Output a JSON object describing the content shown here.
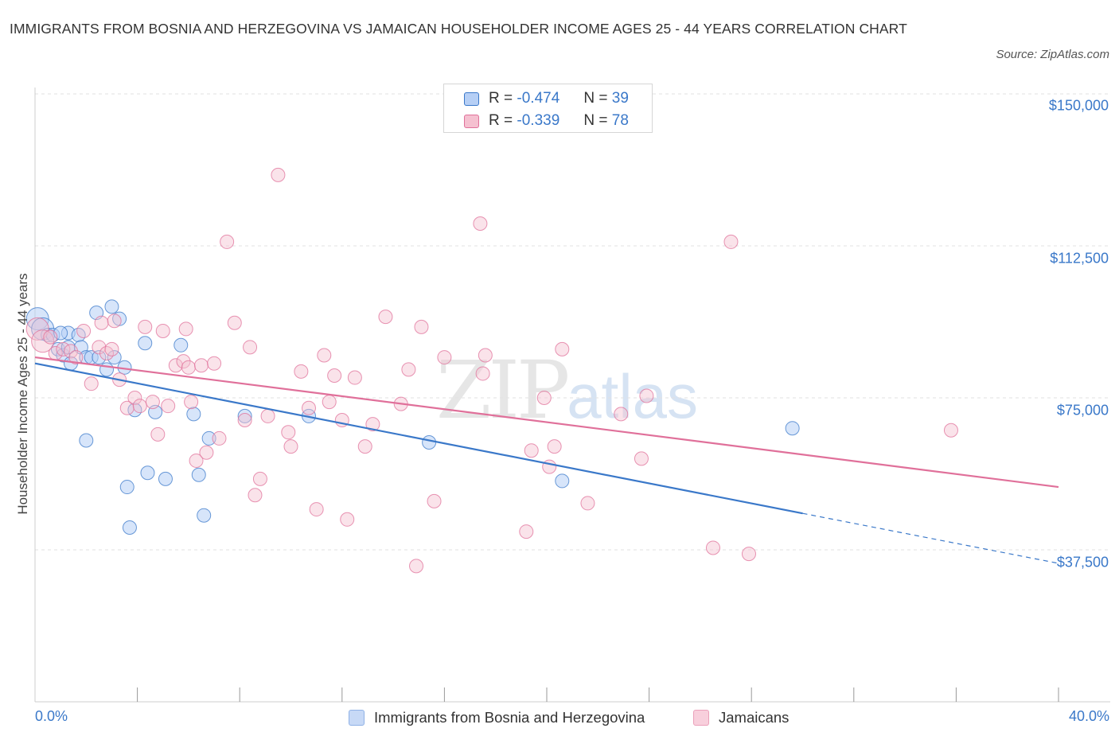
{
  "title": "IMMIGRANTS FROM BOSNIA AND HERZEGOVINA VS JAMAICAN HOUSEHOLDER INCOME AGES 25 - 44 YEARS CORRELATION CHART",
  "source": "Source: ZipAtlas.com",
  "watermark": {
    "zip": "ZIP",
    "atlas": "atlas"
  },
  "colors": {
    "blue": "#3a78c9",
    "blue_fill": "#b6cff5",
    "pink": "#e0709a",
    "pink_fill": "#f5c0d0"
  },
  "legend": {
    "r_label": "R =",
    "n_label": "N =",
    "series": [
      {
        "r": "-0.474",
        "n": "39"
      },
      {
        "r": "-0.339",
        "n": "78"
      }
    ]
  },
  "chart_data": {
    "type": "scatter",
    "title": "IMMIGRANTS FROM BOSNIA AND HERZEGOVINA VS JAMAICAN HOUSEHOLDER INCOME AGES 25 - 44 YEARS CORRELATION CHART",
    "xlabel": "",
    "ylabel": "Householder Income Ages 25 - 44 years",
    "xlim": [
      0,
      40
    ],
    "ylim": [
      0,
      155000
    ],
    "x_tick_labels": [
      "0.0%",
      "40.0%"
    ],
    "y_ticks": [
      37500,
      75000,
      112500,
      150000
    ],
    "y_tick_labels": [
      "$37,500",
      "$75,000",
      "$112,500",
      "$150,000"
    ],
    "grid": true,
    "series": [
      {
        "name": "Immigrants from Bosnia and Herzegovina",
        "color": "#3a78c9",
        "trend": {
          "x0": 0,
          "y0": 83500,
          "x1": 30,
          "y1": 46500,
          "dash_to_x": 40
        },
        "points": [
          [
            0.1,
            94500
          ],
          [
            0.3,
            92000
          ],
          [
            0.5,
            90500
          ],
          [
            0.7,
            90500
          ],
          [
            0.9,
            87000
          ],
          [
            1.1,
            85500
          ],
          [
            1.3,
            87500
          ],
          [
            1.3,
            91000
          ],
          [
            1.4,
            83500
          ],
          [
            1.7,
            90500
          ],
          [
            1.8,
            87500
          ],
          [
            2.0,
            85000
          ],
          [
            2.2,
            85000
          ],
          [
            2.4,
            96000
          ],
          [
            2.5,
            85000
          ],
          [
            2.8,
            82000
          ],
          [
            3.0,
            97500
          ],
          [
            3.1,
            85000
          ],
          [
            3.3,
            94500
          ],
          [
            3.5,
            82500
          ],
          [
            3.6,
            53000
          ],
          [
            3.7,
            43000
          ],
          [
            3.9,
            72000
          ],
          [
            4.3,
            88500
          ],
          [
            4.4,
            56500
          ],
          [
            4.7,
            71500
          ],
          [
            5.1,
            55000
          ],
          [
            5.7,
            88000
          ],
          [
            6.2,
            71000
          ],
          [
            6.4,
            56000
          ],
          [
            6.6,
            46000
          ],
          [
            6.8,
            65000
          ],
          [
            8.2,
            70500
          ],
          [
            10.7,
            70500
          ],
          [
            15.4,
            64000
          ],
          [
            20.6,
            54500
          ],
          [
            2.0,
            64500
          ],
          [
            29.6,
            67500
          ],
          [
            1.0,
            91000
          ]
        ]
      },
      {
        "name": "Jamaicans",
        "color": "#e0709a",
        "trend": {
          "x0": 0,
          "y0": 85000,
          "x1": 40,
          "y1": 53000
        },
        "points": [
          [
            0.1,
            92000
          ],
          [
            0.3,
            89000
          ],
          [
            0.8,
            86000
          ],
          [
            1.1,
            87000
          ],
          [
            1.4,
            86500
          ],
          [
            1.6,
            85000
          ],
          [
            1.9,
            91500
          ],
          [
            2.2,
            78500
          ],
          [
            2.5,
            87500
          ],
          [
            2.6,
            93500
          ],
          [
            2.8,
            86000
          ],
          [
            3.0,
            87000
          ],
          [
            3.1,
            94000
          ],
          [
            3.3,
            79500
          ],
          [
            3.6,
            72500
          ],
          [
            3.9,
            75000
          ],
          [
            4.1,
            73000
          ],
          [
            4.3,
            92500
          ],
          [
            4.6,
            74000
          ],
          [
            4.8,
            66000
          ],
          [
            5.0,
            91500
          ],
          [
            5.2,
            73000
          ],
          [
            5.5,
            83000
          ],
          [
            5.8,
            84000
          ],
          [
            5.9,
            92000
          ],
          [
            6.0,
            82500
          ],
          [
            6.1,
            74000
          ],
          [
            6.3,
            59500
          ],
          [
            6.5,
            83000
          ],
          [
            6.7,
            61500
          ],
          [
            7.0,
            83500
          ],
          [
            7.2,
            65000
          ],
          [
            7.5,
            113500
          ],
          [
            7.8,
            93500
          ],
          [
            8.2,
            69500
          ],
          [
            8.4,
            87500
          ],
          [
            8.6,
            51000
          ],
          [
            8.8,
            55000
          ],
          [
            9.1,
            70500
          ],
          [
            9.5,
            130000
          ],
          [
            9.9,
            66500
          ],
          [
            10.0,
            63000
          ],
          [
            10.4,
            81500
          ],
          [
            10.7,
            72500
          ],
          [
            11.0,
            47500
          ],
          [
            11.3,
            85500
          ],
          [
            11.5,
            74000
          ],
          [
            11.7,
            80500
          ],
          [
            12.0,
            69500
          ],
          [
            12.2,
            45000
          ],
          [
            12.5,
            80000
          ],
          [
            12.9,
            63000
          ],
          [
            13.2,
            68500
          ],
          [
            13.7,
            95000
          ],
          [
            14.3,
            73500
          ],
          [
            14.6,
            82000
          ],
          [
            14.9,
            33500
          ],
          [
            15.1,
            92500
          ],
          [
            15.6,
            49500
          ],
          [
            16.0,
            85000
          ],
          [
            17.4,
            118000
          ],
          [
            17.5,
            81000
          ],
          [
            17.6,
            85500
          ],
          [
            19.2,
            42000
          ],
          [
            19.4,
            62000
          ],
          [
            19.9,
            75000
          ],
          [
            20.1,
            58000
          ],
          [
            20.3,
            63000
          ],
          [
            20.6,
            87000
          ],
          [
            21.6,
            49000
          ],
          [
            22.9,
            71000
          ],
          [
            23.7,
            60000
          ],
          [
            23.9,
            75500
          ],
          [
            26.5,
            38000
          ],
          [
            27.2,
            113500
          ],
          [
            27.9,
            36500
          ],
          [
            35.8,
            67000
          ],
          [
            0.6,
            90000
          ]
        ]
      }
    ]
  },
  "bottom_legend": [
    "Immigrants from Bosnia and Herzegovina",
    "Jamaicans"
  ]
}
